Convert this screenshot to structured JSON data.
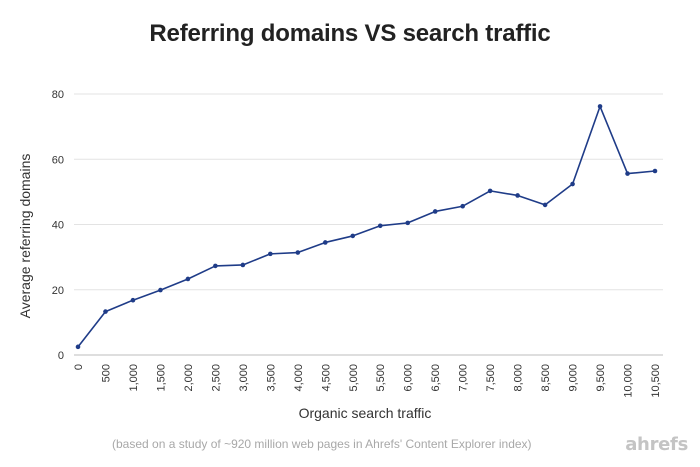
{
  "chart_data": {
    "type": "line",
    "title": "Referring domains VS search traffic",
    "xlabel": "Organic search traffic",
    "ylabel": "Average referring domains",
    "x_tick_labels": [
      "0",
      "500",
      "1,000",
      "1,500",
      "2,000",
      "2,500",
      "3,000",
      "3,500",
      "4,000",
      "4,500",
      "5,000",
      "5,500",
      "6,000",
      "6,500",
      "7,000",
      "7,500",
      "8,000",
      "8,500",
      "9,000",
      "9,500",
      "10,000",
      "10,500"
    ],
    "x": [
      0,
      500,
      1000,
      1500,
      2000,
      2500,
      3000,
      3500,
      4000,
      4500,
      5000,
      5500,
      6000,
      6500,
      7000,
      7500,
      8000,
      8500,
      9000,
      9500,
      10000,
      10500
    ],
    "y_ticks": [
      0,
      20,
      40,
      60,
      80
    ],
    "ylim": [
      0,
      80
    ],
    "xlim": [
      0,
      10500
    ],
    "grid": "horizontal",
    "series": [
      {
        "values": [
          2.5,
          13.3,
          16.8,
          19.9,
          23.3,
          27.3,
          27.6,
          31.0,
          31.4,
          34.5,
          36.5,
          39.6,
          40.5,
          44.0,
          45.6,
          50.3,
          48.9,
          46.0,
          52.4,
          76.2,
          55.6,
          56.4
        ],
        "color": "#1f3c88"
      }
    ]
  },
  "footnote": "(based on a study of ~920 million web pages in Ahrefs' Content Explorer index)",
  "brand": "ahrefs"
}
